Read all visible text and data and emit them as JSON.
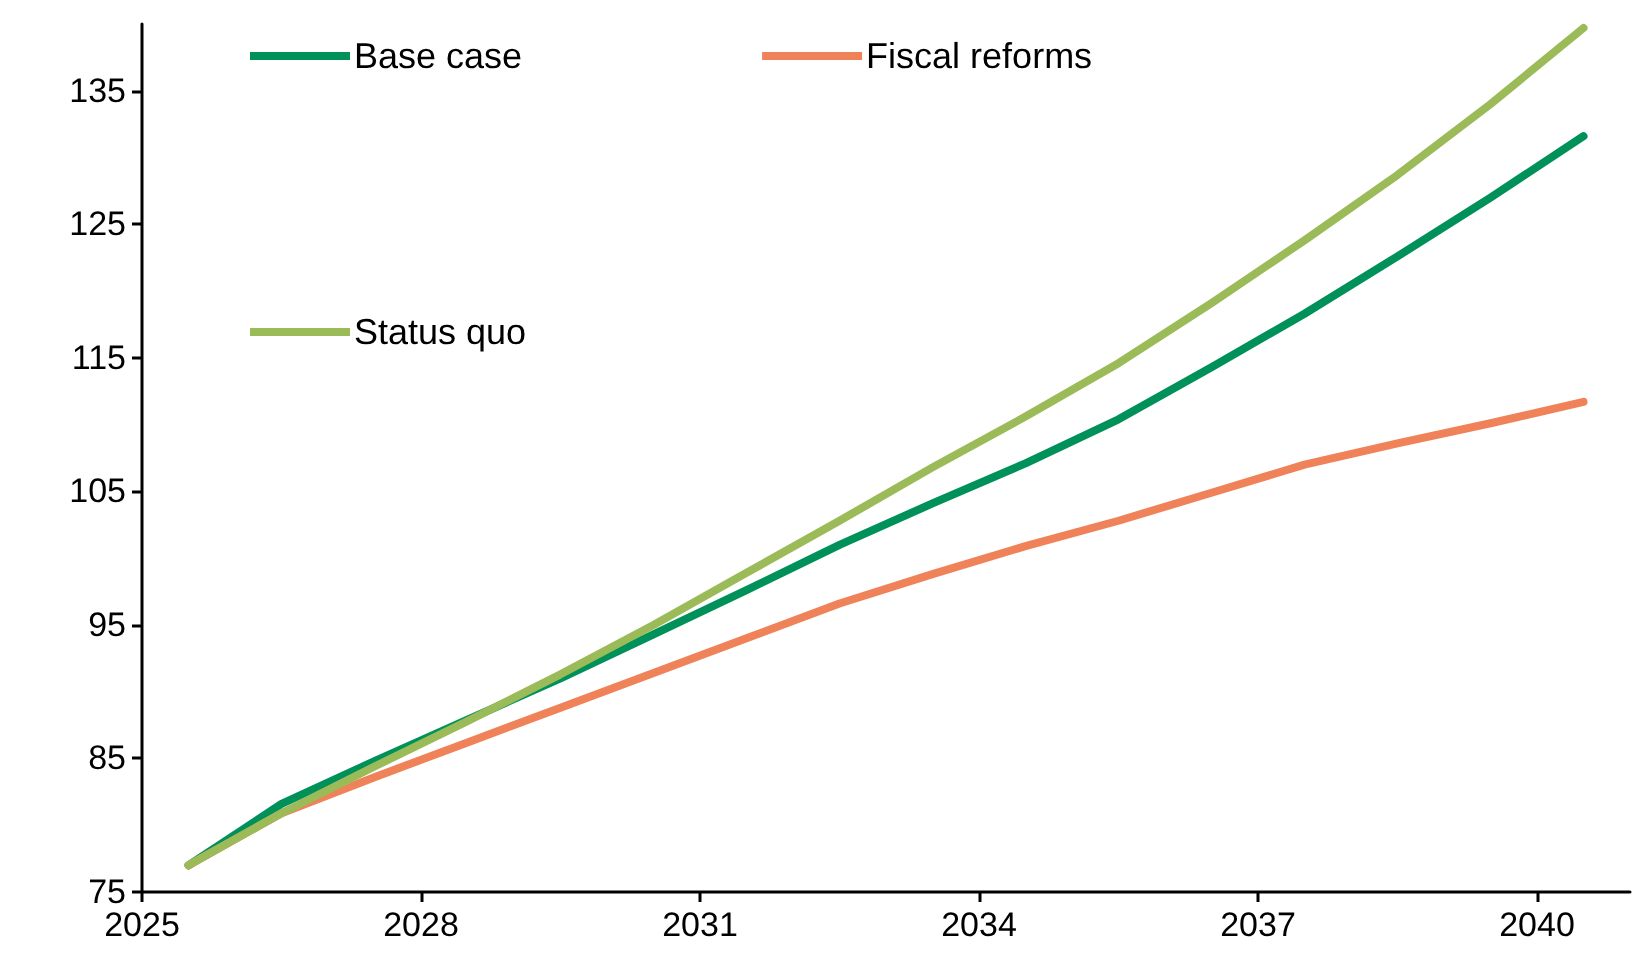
{
  "chart_data": {
    "type": "line",
    "x": [
      2025.5,
      2026.5,
      2027.5,
      2028.5,
      2029.5,
      2030.5,
      2031.5,
      2032.5,
      2033.5,
      2034.5,
      2035.5,
      2036.5,
      2037.5,
      2038.5,
      2039.5,
      2040.5
    ],
    "series": [
      {
        "name": "Base case",
        "color": "#00915a",
        "values": [
          77.0,
          81.6,
          84.8,
          87.9,
          91.0,
          94.3,
          97.6,
          101.0,
          104.1,
          107.1,
          110.4,
          114.3,
          118.3,
          122.6,
          127.0,
          131.6
        ]
      },
      {
        "name": "Fiscal reforms",
        "color": "#f08259",
        "values": [
          77.0,
          80.9,
          83.6,
          86.2,
          88.8,
          91.4,
          94.0,
          96.6,
          98.8,
          100.9,
          102.8,
          104.9,
          107.0,
          108.6,
          110.1,
          111.7
        ]
      },
      {
        "name": "Status quo",
        "color": "#9bbb59",
        "values": [
          77.0,
          80.9,
          84.4,
          87.8,
          91.3,
          95.0,
          98.9,
          102.8,
          106.8,
          110.6,
          114.6,
          119.1,
          123.8,
          128.7,
          134.0,
          139.7
        ]
      }
    ],
    "xlim": [
      2025,
      2041
    ],
    "xticks": [
      2025,
      2028,
      2031,
      2034,
      2037,
      2040
    ],
    "ylim": [
      75,
      140
    ],
    "yticks": [
      75,
      85,
      95,
      105,
      115,
      125,
      135
    ],
    "grid": false,
    "legend": "top left",
    "marker": "none",
    "line_style": "solid"
  }
}
